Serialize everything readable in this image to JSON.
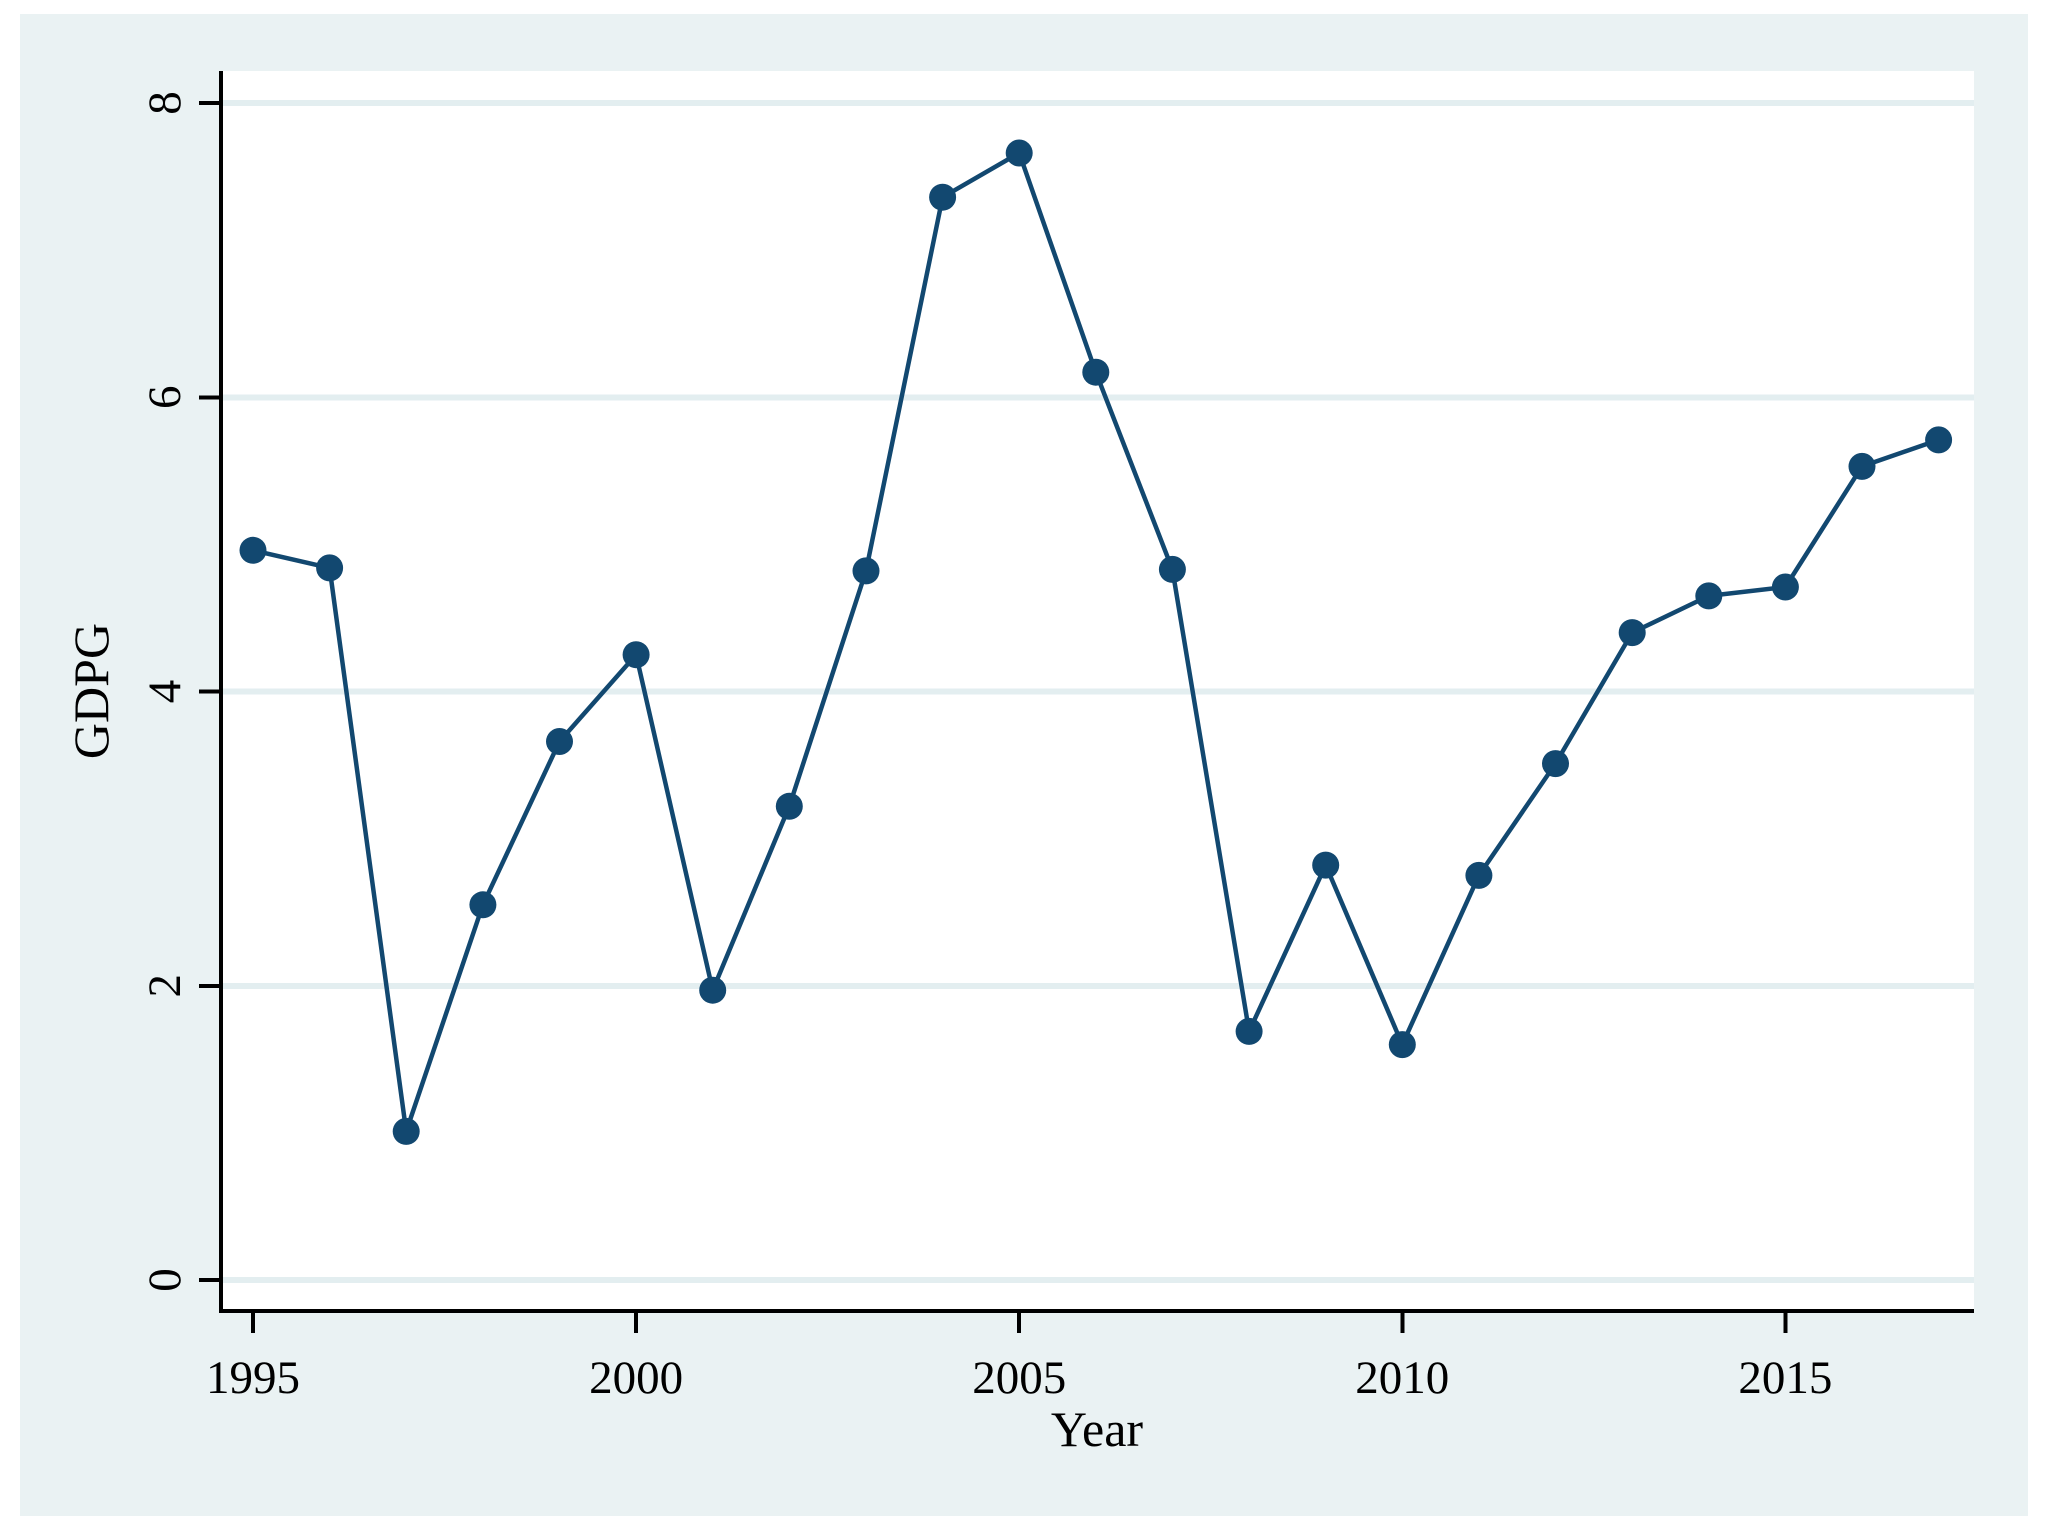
{
  "chart_data": {
    "type": "line",
    "title": "",
    "xlabel": "Year",
    "ylabel": "GDPG",
    "series": [
      {
        "name": "GDPG",
        "x": [
          1995,
          1996,
          1997,
          1998,
          1999,
          2000,
          2001,
          2002,
          2003,
          2004,
          2005,
          2006,
          2007,
          2008,
          2009,
          2010,
          2011,
          2012,
          2013,
          2014,
          2015,
          2016,
          2017
        ],
        "values": [
          4.96,
          4.84,
          1.01,
          2.55,
          3.66,
          4.25,
          1.97,
          3.22,
          4.82,
          7.36,
          7.66,
          6.17,
          4.83,
          1.69,
          2.82,
          1.6,
          2.75,
          3.51,
          4.4,
          4.65,
          4.71,
          5.53,
          5.71
        ]
      }
    ],
    "xticks": [
      1995,
      2000,
      2005,
      2010,
      2015
    ],
    "yticks": [
      0,
      2,
      4,
      6,
      8
    ],
    "xlim": [
      1994.58,
      2017.46
    ],
    "ylim": [
      -0.21,
      8.22
    ],
    "grid": true,
    "legend_position": "none",
    "marker": "circle",
    "colors": {
      "line": "#124870",
      "marker": "#124870",
      "figure_background": "#EAF2F3",
      "plot_background": "#FFFFFF",
      "gridline": "#E3EEF0",
      "axis": "#000000",
      "text": "#000000"
    }
  }
}
